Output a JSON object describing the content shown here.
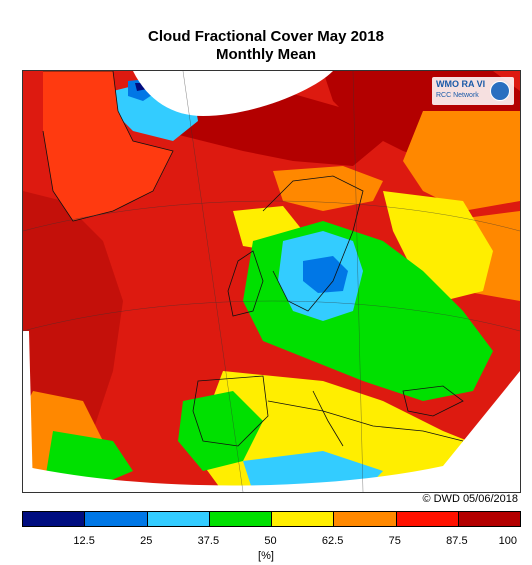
{
  "title": "Cloud Fractional Cover May 2018",
  "subtitle": "Monthly Mean",
  "logo": {
    "line1": "WMO RA VI",
    "line2": "RCC Network"
  },
  "copyright": "© DWD 05/06/2018",
  "legend": {
    "unit": "[%]",
    "ticks": [
      "12.5",
      "25",
      "37.5",
      "50",
      "62.5",
      "75",
      "87.5",
      "100"
    ],
    "colors": [
      "#000d80",
      "#0077e6",
      "#33ccff",
      "#00e000",
      "#ffee00",
      "#ff8800",
      "#ff1100",
      "#b30000"
    ]
  },
  "map": {
    "region": "Europe and North Atlantic",
    "map_background_color": "#dd1a10",
    "no_data_color": "#ffffff"
  }
}
